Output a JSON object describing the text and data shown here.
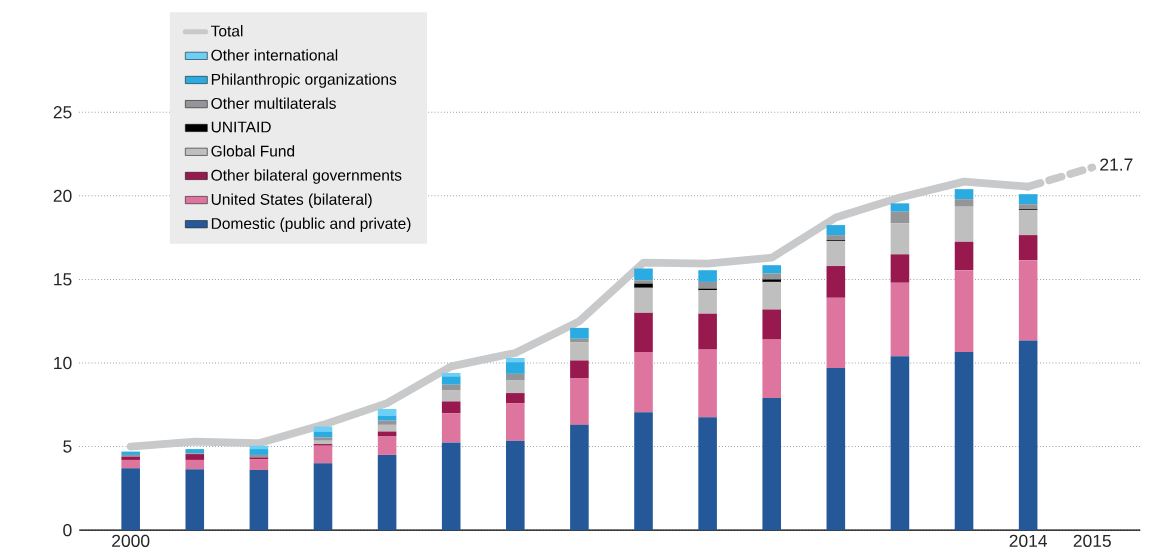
{
  "chart_data": {
    "type": "bar",
    "stacked": true,
    "legend": "top left",
    "grid": "y",
    "x": [
      2000,
      2001,
      2002,
      2003,
      2004,
      2005,
      2006,
      2007,
      2008,
      2009,
      2010,
      2011,
      2012,
      2013,
      2014
    ],
    "xlim": [
      1999.2,
      2015.75
    ],
    "xticks": [
      2000,
      2014,
      2015
    ],
    "ylim": [
      0,
      31
    ],
    "yticks": [
      0,
      5,
      10,
      15,
      20,
      25
    ],
    "series": [
      {
        "name": "Domestic (public and private)",
        "color": "#255899",
        "values": [
          3.7,
          3.65,
          3.6,
          4.0,
          4.5,
          5.25,
          5.35,
          6.3,
          7.05,
          6.75,
          7.9,
          9.7,
          10.4,
          10.65,
          11.35
        ]
      },
      {
        "name": "United States (bilateral)",
        "color": "#dd759f",
        "values": [
          0.5,
          0.55,
          0.65,
          1.05,
          1.1,
          1.75,
          2.25,
          2.8,
          3.6,
          4.05,
          3.5,
          4.2,
          4.4,
          4.9,
          4.8
        ]
      },
      {
        "name": "Other bilateral governments",
        "color": "#98194d",
        "values": [
          0.2,
          0.35,
          0.1,
          0.1,
          0.3,
          0.7,
          0.6,
          1.05,
          2.35,
          2.15,
          1.8,
          1.9,
          1.7,
          1.7,
          1.5
        ]
      },
      {
        "name": "Global Fund",
        "color": "#bfbfbf",
        "values": [
          0,
          0,
          0,
          0.2,
          0.4,
          0.65,
          0.75,
          1.1,
          1.5,
          1.4,
          1.65,
          1.5,
          1.85,
          2.1,
          1.5
        ]
      },
      {
        "name": "UNITAID",
        "color": "#000000",
        "values": [
          0,
          0,
          0,
          0,
          0,
          0,
          0,
          0,
          0.25,
          0.1,
          0.15,
          0.05,
          0,
          0,
          0.05
        ]
      },
      {
        "name": "Other multilaterals",
        "color": "#939598",
        "values": [
          0.1,
          0.05,
          0.15,
          0.2,
          0.25,
          0.35,
          0.4,
          0.2,
          0.2,
          0.4,
          0.35,
          0.3,
          0.7,
          0.45,
          0.3
        ]
      },
      {
        "name": "Philanthropic organizations",
        "color": "#2aabe2",
        "values": [
          0.2,
          0.25,
          0.35,
          0.35,
          0.3,
          0.5,
          0.7,
          0.65,
          0.7,
          0.7,
          0.5,
          0.6,
          0.5,
          0.6,
          0.6
        ]
      },
      {
        "name": "Other international",
        "color": "#6ccff6",
        "values": [
          0,
          0,
          0.2,
          0.3,
          0.4,
          0.2,
          0.25,
          0,
          0,
          0,
          0,
          0,
          0,
          0,
          0
        ]
      },
      {
        "name": "Total",
        "type": "line",
        "line_style": "solid",
        "color": "#c8c9ca",
        "values": [
          5.0,
          5.3,
          5.2,
          6.3,
          7.6,
          9.8,
          10.6,
          12.5,
          16.0,
          15.95,
          16.3,
          18.7,
          19.9,
          20.85,
          20.55
        ]
      },
      {
        "type": "line",
        "line_style": "dashed",
        "color": "#c8c9ca",
        "x": [
          2014,
          2015
        ],
        "values": [
          20.55,
          21.7
        ]
      }
    ],
    "annotations": [
      {
        "text": "21.7",
        "x": 2015,
        "y": 21.7
      }
    ]
  }
}
